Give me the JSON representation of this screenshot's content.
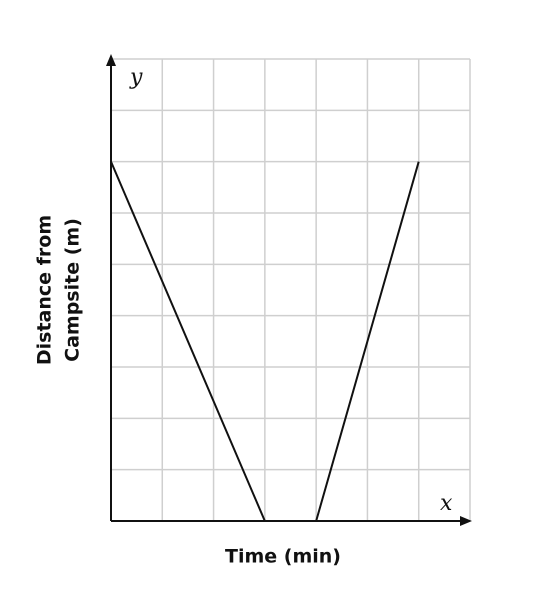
{
  "chart_data": {
    "type": "line",
    "x_axis_name": "x",
    "y_axis_name": "y",
    "x_label": "Time (min)",
    "y_label": [
      "Distance from",
      "Campsite (m)"
    ],
    "x": [
      0,
      3,
      4,
      6
    ],
    "series": [
      {
        "color": "#111111",
        "values": [
          7,
          0,
          0,
          7
        ]
      }
    ],
    "xlim": [
      0,
      7
    ],
    "ylim": [
      0,
      9
    ],
    "xticks": [
      0,
      1,
      2,
      3,
      4,
      5,
      6,
      7
    ],
    "yticks": [
      0,
      1,
      2,
      3,
      4,
      5,
      6,
      7,
      8,
      9
    ],
    "grid": true
  }
}
